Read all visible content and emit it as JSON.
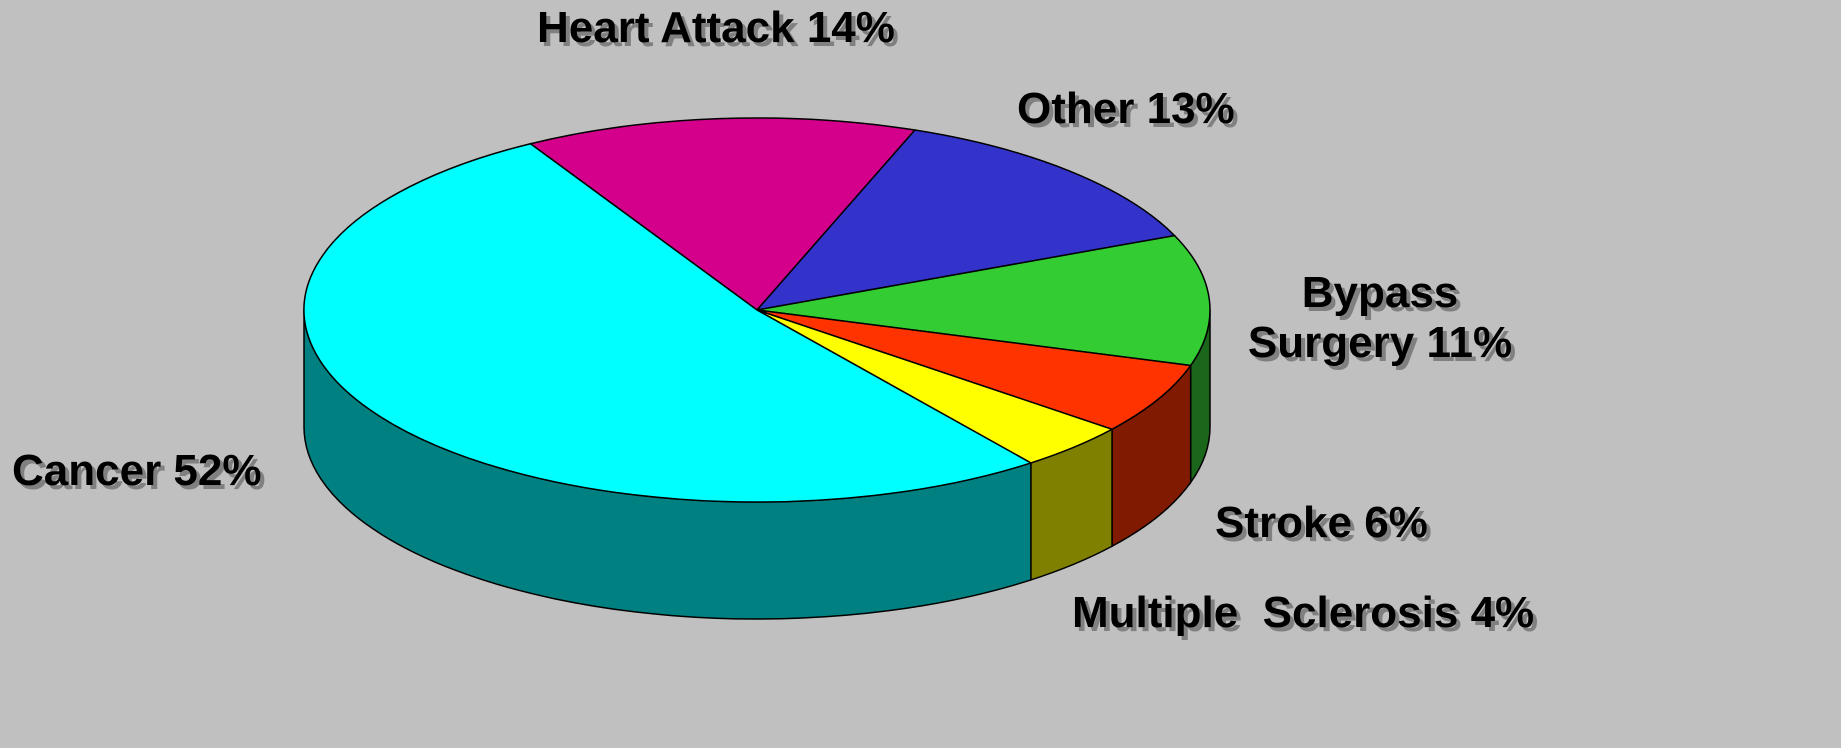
{
  "chart_data": {
    "type": "pie3d",
    "categories": [
      "Heart Attack",
      "Other",
      "Bypass Surgery",
      "Stroke",
      "Multiple  Sclerosis",
      "Cancer"
    ],
    "values": [
      14,
      13,
      11,
      6,
      4,
      52
    ],
    "value_labels": [
      "14%",
      "13%",
      "11%",
      "6%",
      "4%",
      "52%"
    ],
    "colors": [
      "#d4008c",
      "#3333cc",
      "#33cc33",
      "#ff3300",
      "#ffff00",
      "#00ffff"
    ]
  }
}
